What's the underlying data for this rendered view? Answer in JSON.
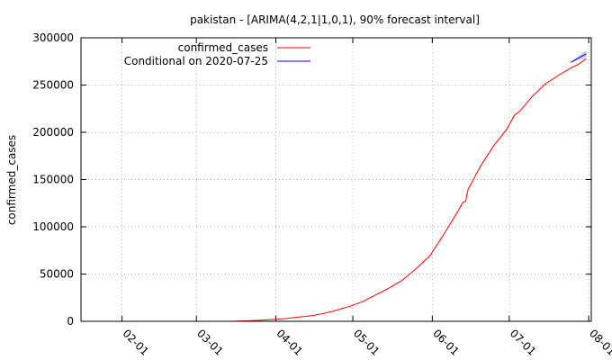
{
  "chart_data": {
    "type": "line",
    "title": "pakistan -  [ARIMA(4,2,1|1,0,1), 90% forecast interval]",
    "xlabel": "",
    "ylabel": "confirmed_cases",
    "x_axis": {
      "type": "date",
      "range": [
        "2020-01-16",
        "2020-08-02"
      ],
      "tick_labels": [
        "02-01",
        "03-01",
        "04-01",
        "05-01",
        "06-01",
        "07-01",
        "08-01"
      ],
      "tick_dates": [
        "2020-02-01",
        "2020-03-01",
        "2020-04-01",
        "2020-05-01",
        "2020-06-01",
        "2020-07-01",
        "2020-08-01"
      ]
    },
    "y_axis": {
      "range": [
        0,
        300000
      ],
      "ticks": [
        0,
        50000,
        100000,
        150000,
        200000,
        250000,
        300000
      ],
      "tick_labels": [
        "0",
        "50000",
        "100000",
        "150000",
        "200000",
        "250000",
        "300000"
      ]
    },
    "grid": true,
    "legend_position": "top-left",
    "series": [
      {
        "name": "confirmed_cases",
        "color": "#ff0000",
        "points": [
          [
            "2020-03-15",
            0
          ],
          [
            "2020-03-20",
            500
          ],
          [
            "2020-03-25",
            1000
          ],
          [
            "2020-03-31",
            2000
          ],
          [
            "2020-04-05",
            3000
          ],
          [
            "2020-04-10",
            4500
          ],
          [
            "2020-04-15",
            6000
          ],
          [
            "2020-04-20",
            8500
          ],
          [
            "2020-04-25",
            12000
          ],
          [
            "2020-04-30",
            16000
          ],
          [
            "2020-05-05",
            21000
          ],
          [
            "2020-05-10",
            28000
          ],
          [
            "2020-05-15",
            35000
          ],
          [
            "2020-05-20",
            43000
          ],
          [
            "2020-05-25",
            54000
          ],
          [
            "2020-05-31",
            69000
          ],
          [
            "2020-06-05",
            90000
          ],
          [
            "2020-06-10",
            112000
          ],
          [
            "2020-06-13",
            126000
          ],
          [
            "2020-06-14",
            127000
          ],
          [
            "2020-06-15",
            140000
          ],
          [
            "2020-06-20",
            165000
          ],
          [
            "2020-06-25",
            186000
          ],
          [
            "2020-06-30",
            203000
          ],
          [
            "2020-07-03",
            218000
          ],
          [
            "2020-07-05",
            222000
          ],
          [
            "2020-07-10",
            238000
          ],
          [
            "2020-07-15",
            251000
          ],
          [
            "2020-07-20",
            260000
          ],
          [
            "2020-07-25",
            268000
          ],
          [
            "2020-07-28",
            272000
          ],
          [
            "2020-07-31",
            278000
          ]
        ]
      },
      {
        "name": "Conditional on 2020-07-25",
        "color": "#0000ff",
        "points": [
          [
            "2020-07-25",
            274000
          ],
          [
            "2020-07-31",
            283000
          ]
        ],
        "interval": {
          "color": "#c7cde8",
          "upper": [
            [
              "2020-07-25",
              274500
            ],
            [
              "2020-07-31",
              287000
            ]
          ],
          "lower": [
            [
              "2020-07-25",
              273500
            ],
            [
              "2020-07-31",
              279000
            ]
          ]
        }
      }
    ]
  }
}
